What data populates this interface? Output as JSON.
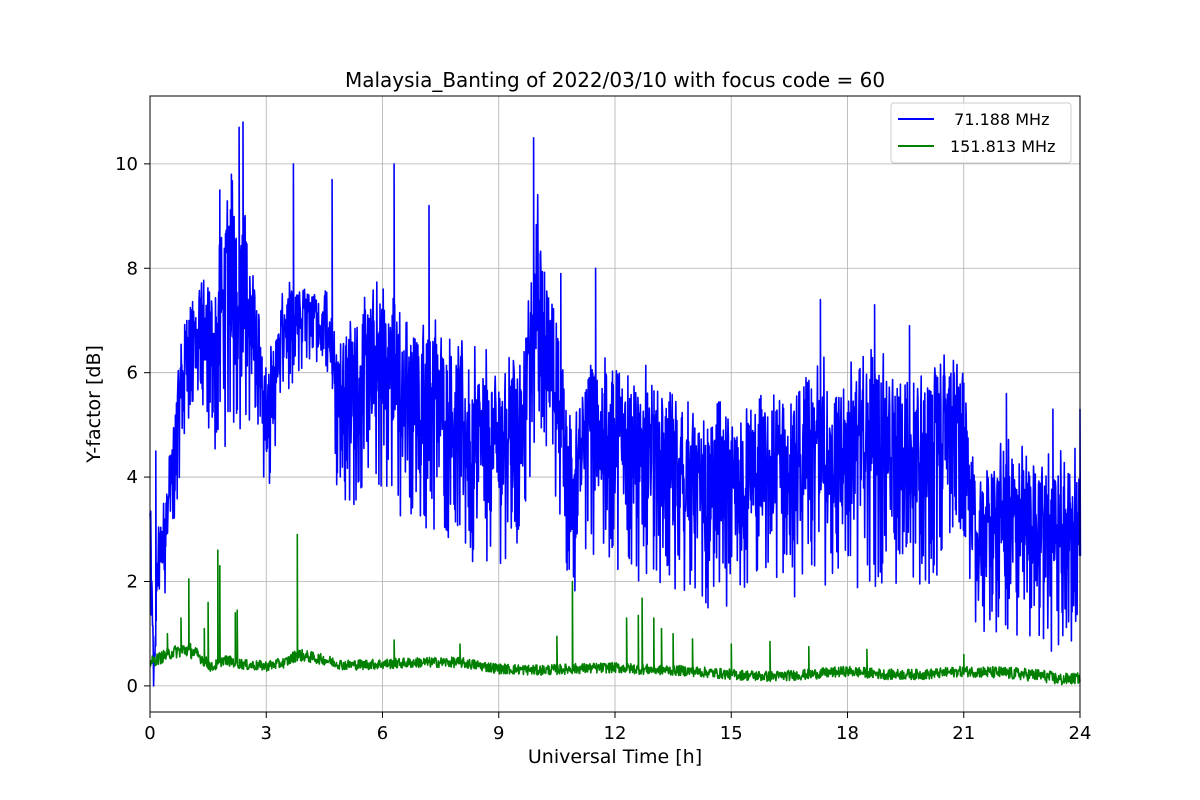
{
  "chart_data": {
    "type": "line",
    "title": "Malaysia_Banting of 2022/03/10 with focus code = 60",
    "xlabel": "Universal Time [h]",
    "ylabel": "Y-factor [dB]",
    "xlim": [
      0,
      24
    ],
    "ylim": [
      -0.5,
      11.3
    ],
    "xticks": [
      0,
      3,
      6,
      9,
      12,
      15,
      18,
      21,
      24
    ],
    "yticks": [
      0,
      2,
      4,
      6,
      8,
      10
    ],
    "xtick_labels": [
      "0",
      "3",
      "6",
      "9",
      "12",
      "15",
      "18",
      "21",
      "24"
    ],
    "ytick_labels": [
      "0",
      "2",
      "4",
      "6",
      "8",
      "10"
    ],
    "grid": true,
    "legend_position": "top-right",
    "series": [
      {
        "name": "  71.188 MHz",
        "color": "#0000ff",
        "x": [
          0,
          0.1,
          0.2,
          0.4,
          0.6,
          0.8,
          1.0,
          1.2,
          1.5,
          1.8,
          2.0,
          2.2,
          2.4,
          2.6,
          2.8,
          3.0,
          3.2,
          3.5,
          3.7,
          4.0,
          4.3,
          4.6,
          4.8,
          5.0,
          5.3,
          5.6,
          6.0,
          6.3,
          6.6,
          7.0,
          7.3,
          7.6,
          8.0,
          8.3,
          8.6,
          9.0,
          9.3,
          9.6,
          9.9,
          10.0,
          10.2,
          10.5,
          10.8,
          11.0,
          11.3,
          11.6,
          12.0,
          12.3,
          12.6,
          13.0,
          13.3,
          13.6,
          14.0,
          14.3,
          14.6,
          15.0,
          15.3,
          15.6,
          16.0,
          16.3,
          16.6,
          17.0,
          17.3,
          17.6,
          18.0,
          18.3,
          18.6,
          19.0,
          19.3,
          19.6,
          20.0,
          20.3,
          20.6,
          21.0,
          21.3,
          21.6,
          22.0,
          22.3,
          22.6,
          23.0,
          23.3,
          23.6,
          24.0
        ],
        "y": [
          3.0,
          0.0,
          2.2,
          2.8,
          4.0,
          5.6,
          6.2,
          6.2,
          6.0,
          6.5,
          7.0,
          7.4,
          7.3,
          6.6,
          6.2,
          4.8,
          5.6,
          6.8,
          6.6,
          6.9,
          6.9,
          6.8,
          5.5,
          5.2,
          5.4,
          5.6,
          5.8,
          5.5,
          5.2,
          5.0,
          5.1,
          4.9,
          4.6,
          4.3,
          4.4,
          4.3,
          4.5,
          4.6,
          6.0,
          7.4,
          6.3,
          5.0,
          3.8,
          3.6,
          4.6,
          4.3,
          4.4,
          4.2,
          4.0,
          4.1,
          3.9,
          3.7,
          3.5,
          3.3,
          3.6,
          3.1,
          3.5,
          3.7,
          3.8,
          3.9,
          3.7,
          3.8,
          4.2,
          3.9,
          4.0,
          4.2,
          4.3,
          4.1,
          4.0,
          4.2,
          3.9,
          4.3,
          4.5,
          4.4,
          2.3,
          2.6,
          2.8,
          2.9,
          2.7,
          2.6,
          2.6,
          2.7,
          2.5
        ],
        "spread": [
          1.0,
          0.5,
          0.8,
          1.0,
          1.2,
          1.3,
          1.4,
          1.6,
          1.8,
          2.0,
          2.4,
          2.6,
          2.4,
          1.6,
          1.2,
          1.4,
          1.2,
          1.0,
          1.1,
          0.8,
          0.7,
          0.9,
          1.6,
          1.8,
          2.0,
          2.0,
          2.2,
          2.2,
          2.0,
          2.1,
          2.1,
          2.0,
          2.2,
          2.2,
          2.1,
          2.0,
          2.0,
          2.1,
          2.0,
          2.2,
          2.0,
          2.0,
          1.8,
          1.9,
          2.0,
          2.0,
          2.1,
          2.2,
          2.1,
          2.1,
          2.0,
          2.0,
          1.9,
          1.9,
          2.0,
          2.0,
          2.0,
          1.9,
          1.9,
          1.9,
          2.0,
          2.2,
          2.4,
          2.0,
          2.2,
          2.4,
          2.4,
          2.2,
          2.2,
          2.2,
          2.2,
          2.2,
          2.0,
          1.8,
          1.6,
          1.8,
          1.9,
          2.0,
          1.9,
          1.8,
          2.2,
          2.0,
          2.0
        ],
        "peaks": [
          [
            0.15,
            4.5
          ],
          [
            2.3,
            10.7
          ],
          [
            2.4,
            10.8
          ],
          [
            2.1,
            9.8
          ],
          [
            1.8,
            9.5
          ],
          [
            3.7,
            10.0
          ],
          [
            4.7,
            9.7
          ],
          [
            6.3,
            10.0
          ],
          [
            7.2,
            9.2
          ],
          [
            9.9,
            10.5
          ],
          [
            10.6,
            7.9
          ],
          [
            11.5,
            8.0
          ],
          [
            17.3,
            7.4
          ],
          [
            18.7,
            7.3
          ],
          [
            19.6,
            6.9
          ],
          [
            22.1,
            5.6
          ],
          [
            23.3,
            5.3
          ],
          [
            24.0,
            5.3
          ]
        ]
      },
      {
        "name": "151.813 MHz",
        "color": "#008000",
        "x": [
          0,
          0.3,
          0.6,
          1.0,
          1.3,
          1.6,
          1.9,
          2.2,
          2.5,
          3.0,
          3.5,
          3.8,
          4.5,
          5.0,
          6.0,
          7.0,
          8.0,
          9.0,
          10.0,
          11.0,
          12.0,
          12.7,
          13.5,
          14.0,
          15.0,
          16.0,
          17.0,
          18.0,
          19.0,
          20.0,
          21.0,
          22.0,
          23.0,
          23.5,
          24.0
        ],
        "y": [
          0.45,
          0.55,
          0.65,
          0.7,
          0.55,
          0.35,
          0.5,
          0.45,
          0.4,
          0.38,
          0.45,
          0.6,
          0.5,
          0.4,
          0.42,
          0.45,
          0.45,
          0.33,
          0.3,
          0.33,
          0.35,
          0.32,
          0.3,
          0.28,
          0.22,
          0.18,
          0.22,
          0.28,
          0.22,
          0.22,
          0.28,
          0.25,
          0.2,
          0.12,
          0.15
        ],
        "spread": [
          0.1,
          0.12,
          0.12,
          0.15,
          0.12,
          0.1,
          0.1,
          0.1,
          0.1,
          0.1,
          0.1,
          0.12,
          0.1,
          0.1,
          0.1,
          0.1,
          0.1,
          0.1,
          0.1,
          0.1,
          0.1,
          0.1,
          0.1,
          0.1,
          0.1,
          0.1,
          0.1,
          0.1,
          0.1,
          0.1,
          0.1,
          0.12,
          0.12,
          0.12,
          0.1
        ],
        "peaks": [
          [
            0.45,
            1.0
          ],
          [
            0.8,
            1.3
          ],
          [
            1.0,
            2.05
          ],
          [
            1.4,
            1.1
          ],
          [
            1.5,
            1.6
          ],
          [
            1.75,
            2.6
          ],
          [
            1.8,
            2.3
          ],
          [
            2.2,
            1.4
          ],
          [
            2.25,
            1.45
          ],
          [
            3.8,
            2.9
          ],
          [
            6.3,
            0.88
          ],
          [
            8.0,
            0.8
          ],
          [
            10.5,
            0.95
          ],
          [
            10.9,
            2.0
          ],
          [
            12.3,
            1.3
          ],
          [
            12.6,
            1.35
          ],
          [
            12.7,
            1.68
          ],
          [
            13.0,
            1.3
          ],
          [
            13.2,
            1.1
          ],
          [
            13.5,
            1.0
          ],
          [
            14.0,
            0.9
          ],
          [
            15.0,
            0.8
          ],
          [
            16.0,
            0.85
          ],
          [
            17.0,
            0.75
          ],
          [
            18.5,
            0.7
          ],
          [
            21.0,
            0.6
          ]
        ]
      }
    ]
  }
}
